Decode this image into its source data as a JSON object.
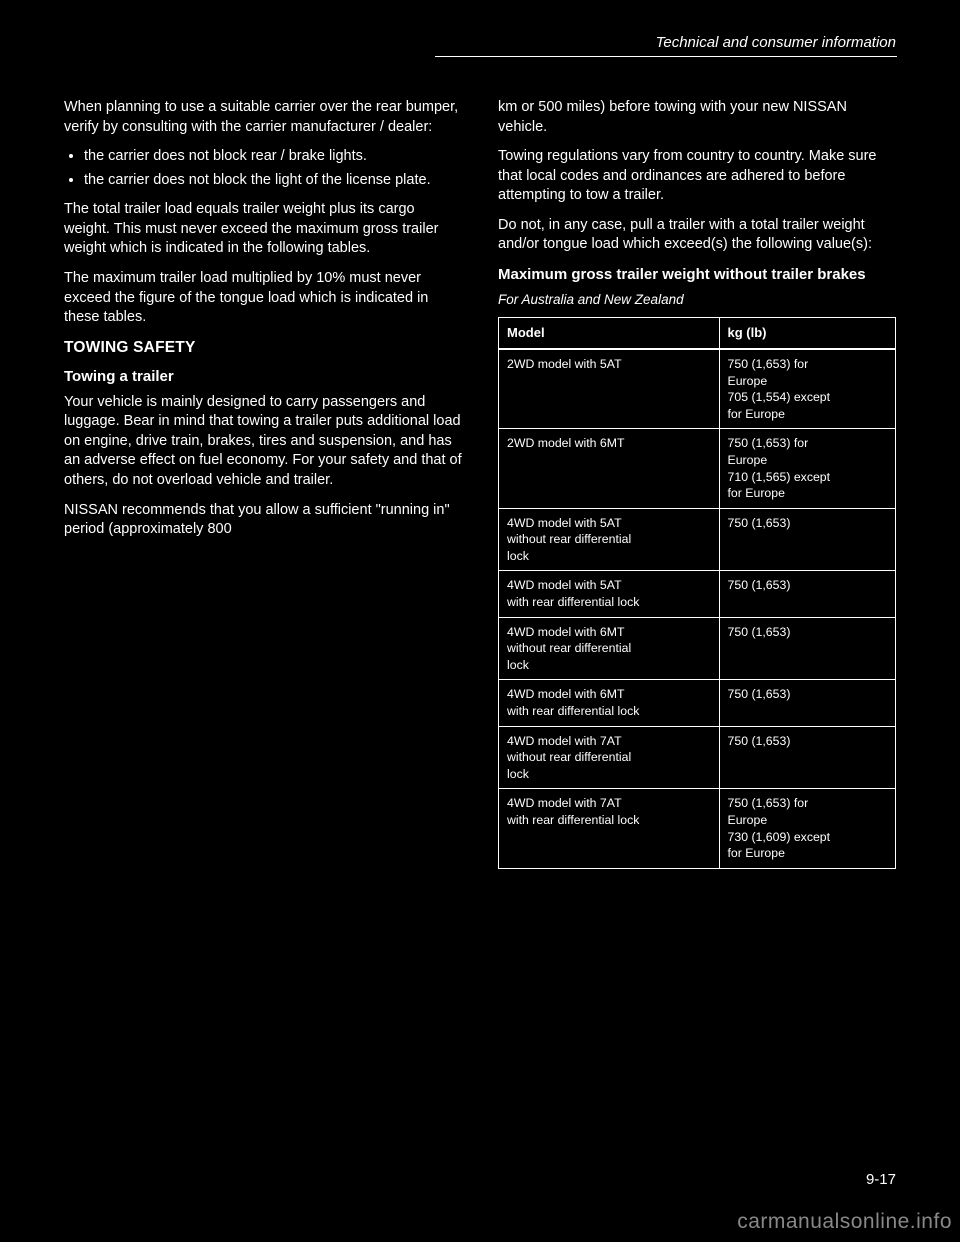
{
  "header": {
    "caption": "Technical and consumer information"
  },
  "left": {
    "intro": "When planning to use a suitable carrier over the rear bumper, verify by consulting with the carrier manufacturer / dealer:",
    "bullets": [
      "the carrier does not block rear / brake lights.",
      "the carrier does not block the light of the license plate."
    ],
    "para2": "The total trailer load equals trailer weight plus its cargo weight. This must never exceed the maximum gross trailer weight which is indicated in the following tables.",
    "para3": "The maximum trailer load multiplied by 10% must never exceed the figure of the tongue load which is indicated in these tables.",
    "heading1": "TOWING SAFETY",
    "heading2": "Towing a trailer",
    "para4": "Your vehicle is mainly designed to carry passengers and luggage. Bear in mind that towing a trailer puts additional load on engine, drive train, brakes, tires and suspension, and has an adverse effect on fuel economy. For your safety and that of others, do not overload vehicle and trailer.",
    "para5": "NISSAN recommends that you allow a sufficient \"running in\" period (approximately 800"
  },
  "right": {
    "para1": "km or 500 miles) before towing with your new NISSAN vehicle.",
    "para2": "Towing regulations vary from country to country. Make sure that local codes and ordinances are adhered to before attempting to tow a trailer.",
    "para3": "Do not, in any case, pull a trailer with a total trailer weight and/or tongue load which exceed(s) the following value(s):",
    "heading": "Maximum gross trailer weight without trailer brakes",
    "note": "For Australia and New Zealand"
  },
  "table": {
    "headers": [
      "Model",
      "kg (lb)"
    ],
    "rows": [
      [
        "2WD model with 5AT",
        "750 (1,653) for\nEurope\n705 (1,554) except\nfor Europe"
      ],
      [
        "2WD model with 6MT",
        "750 (1,653) for\nEurope\n710 (1,565) except\nfor Europe"
      ],
      [
        "4WD model with 5AT\nwithout rear differential\nlock",
        "750 (1,653)"
      ],
      [
        "4WD model with 5AT\nwith rear differential lock",
        "750 (1,653)"
      ],
      [
        "4WD model with 6MT\nwithout rear differential\nlock",
        "750 (1,653)"
      ],
      [
        "4WD model with 6MT\nwith rear differential lock",
        "750 (1,653)"
      ],
      [
        "4WD model with 7AT\nwithout rear differential\nlock",
        "750 (1,653)"
      ],
      [
        "4WD model with 7AT\nwith rear differential lock",
        "750 (1,653) for\nEurope\n730 (1,609) except\nfor Europe"
      ]
    ]
  },
  "footer": {
    "page": "9-17",
    "watermark": "carmanualsonline.info"
  }
}
